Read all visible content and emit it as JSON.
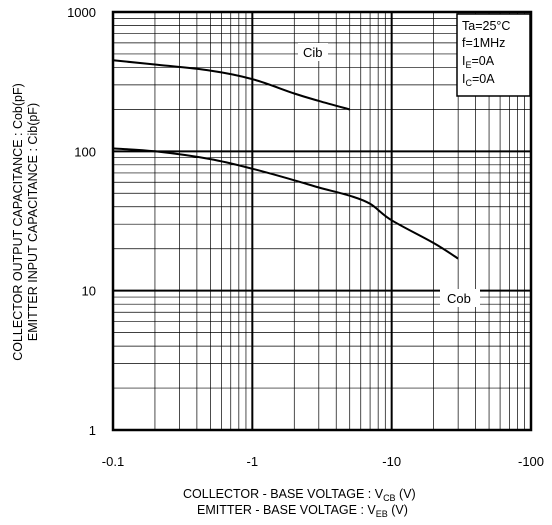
{
  "chart_data": {
    "type": "line",
    "x_scale": "log",
    "y_scale": "log",
    "xlim": [
      -0.1,
      -100
    ],
    "ylim": [
      1,
      1000
    ],
    "x_tick_labels": [
      "-0.1",
      "-1",
      "-10",
      "-100"
    ],
    "y_tick_labels": [
      "1",
      "10",
      "100",
      "1000"
    ],
    "grid": true,
    "xlabel": {
      "line1_main": "COLLECTOR - BASE VOLTAGE  : V",
      "line1_sub": "CB",
      "line1_tail": " (V)",
      "line2_main": "EMITTER - BASE VOLTAGE : V",
      "line2_sub": "EB",
      "line2_tail": " (V)"
    },
    "ylabel": {
      "line1": "COLLECTOR  OUTPUT CAPACITANCE  : Cob(pF)",
      "line2": "EMITTER INPUT CAPACITANCE  : Cib(pF)"
    },
    "conditions": [
      {
        "main": "Ta=25°C",
        "sub": ""
      },
      {
        "main": "f=1MHz",
        "sub": ""
      },
      {
        "main": "I",
        "sub": "E",
        "tail": "=0A"
      },
      {
        "main": "I",
        "sub": "C",
        "tail": "=0A"
      }
    ],
    "series": [
      {
        "name": "Cib",
        "x": [
          -0.1,
          -0.2,
          -0.5,
          -1,
          -2,
          -3,
          -5
        ],
        "y": [
          450,
          420,
          380,
          330,
          260,
          230,
          200
        ]
      },
      {
        "name": "Cob",
        "x": [
          -0.1,
          -0.2,
          -0.5,
          -1,
          -2,
          -3,
          -5,
          -7,
          -10,
          -20,
          -30
        ],
        "y": [
          105,
          100,
          88,
          75,
          62,
          55,
          48,
          42,
          32,
          22,
          17
        ]
      }
    ]
  }
}
